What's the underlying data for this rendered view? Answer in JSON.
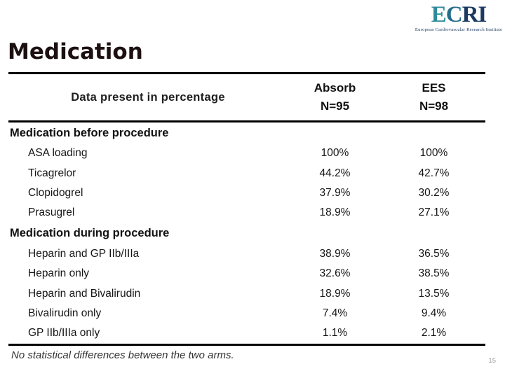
{
  "logo": {
    "letter_e": "E",
    "letter_c": "C",
    "letters_ri": "RI",
    "subtitle": "European Cardiovascular Research Institute"
  },
  "title": "Medication",
  "table": {
    "header": {
      "label": "Data present in percentage",
      "col_absorb_name": "Absorb",
      "col_absorb_n": "N=95",
      "col_ees_name": "EES",
      "col_ees_n": "N=98"
    },
    "sections": [
      {
        "title": "Medication before procedure",
        "rows": [
          {
            "label": "ASA loading",
            "absorb": "100%",
            "ees": "100%"
          },
          {
            "label": "Ticagrelor",
            "absorb": "44.2%",
            "ees": "42.7%"
          },
          {
            "label": "Clopidogrel",
            "absorb": "37.9%",
            "ees": "30.2%"
          },
          {
            "label": "Prasugrel",
            "absorb": "18.9%",
            "ees": "27.1%"
          }
        ]
      },
      {
        "title": "Medication during procedure",
        "rows": [
          {
            "label": "Heparin and GP IIb/IIIa",
            "absorb": "38.9%",
            "ees": "36.5%"
          },
          {
            "label": "Heparin only",
            "absorb": "32.6%",
            "ees": "38.5%"
          },
          {
            "label": "Heparin and Bivalirudin",
            "absorb": "18.9%",
            "ees": "13.5%"
          },
          {
            "label": "Bivalirudin only",
            "absorb": "7.4%",
            "ees": "9.4%"
          },
          {
            "label": "GP IIb/IIIa only",
            "absorb": "1.1%",
            "ees": "2.1%"
          }
        ]
      }
    ]
  },
  "footer": {
    "note": "No statistical differences between the two arms.",
    "page_number": "15"
  },
  "colors": {
    "logo_teal": "#2e8b9a",
    "logo_navy": "#1b3a63",
    "title": "#1c1010",
    "text": "#1a1a1a",
    "table_line": "#000000",
    "footer_text": "#333333",
    "page_number": "#9a9a9a",
    "background": "#ffffff"
  }
}
